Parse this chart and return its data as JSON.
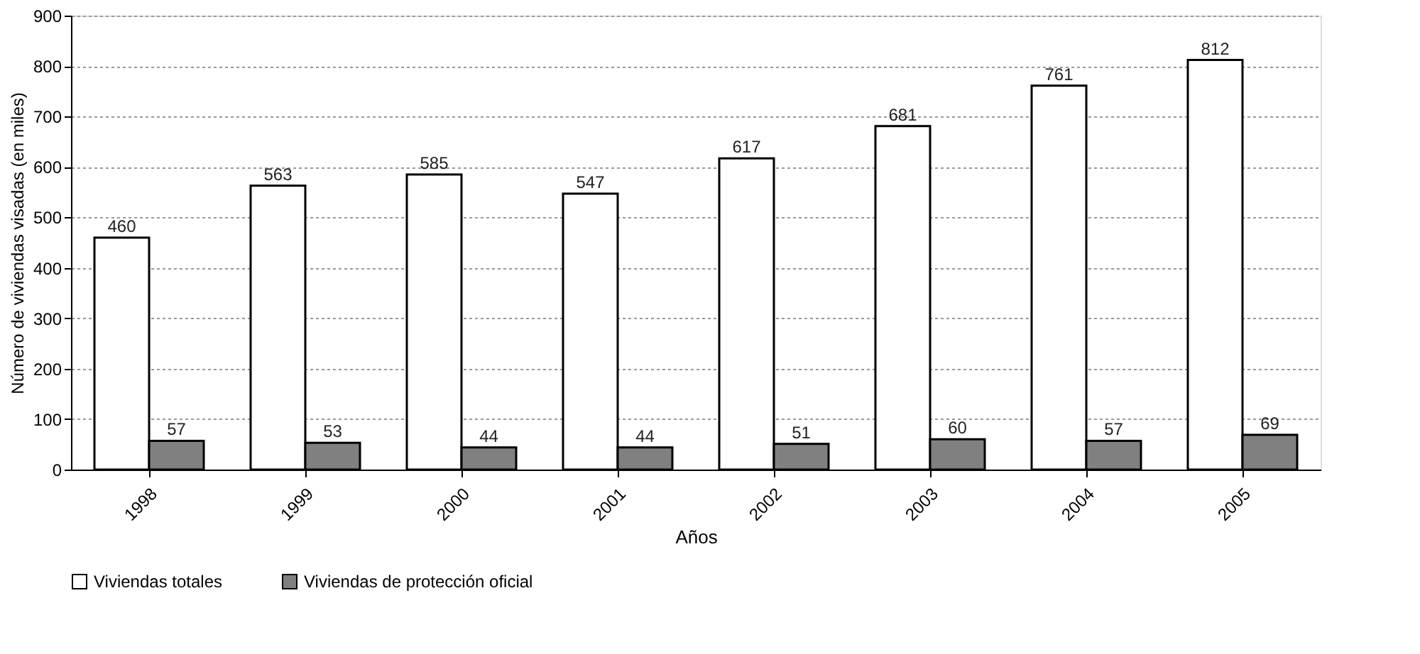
{
  "chart_data": {
    "type": "bar",
    "xlabel": "Años",
    "ylabel": "Número de viviendas visadas (en miles)",
    "categories": [
      "1998",
      "1999",
      "2000",
      "2001",
      "2002",
      "2003",
      "2004",
      "2005"
    ],
    "series": [
      {
        "name": "Viviendas totales",
        "color": "#ffffff",
        "values": [
          460,
          563,
          585,
          547,
          617,
          681,
          761,
          812
        ]
      },
      {
        "name": "Viviendas de protección oficial",
        "color": "#808080",
        "values": [
          57,
          53,
          44,
          44,
          51,
          60,
          57,
          69
        ]
      }
    ],
    "ylim": [
      0,
      900
    ],
    "yticks": [
      0,
      100,
      200,
      300,
      400,
      500,
      600,
      700,
      800,
      900
    ],
    "grid": "y",
    "legend": "bottom",
    "data_labels": true
  }
}
